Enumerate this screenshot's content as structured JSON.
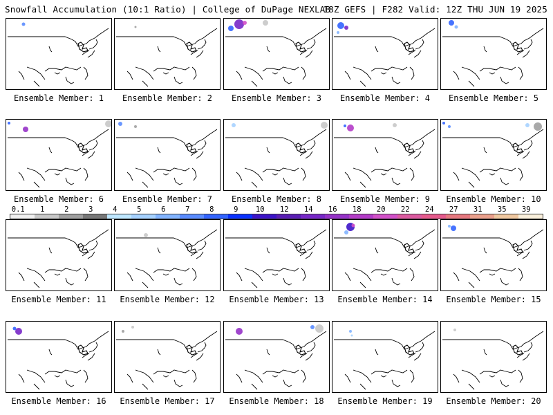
{
  "header": {
    "left": "Snowfall Accumulation (10:1 Ratio) | College of DuPage NEXLAB",
    "right": "18Z GEFS | F282 Valid: 12Z THU JUN 19 2025"
  },
  "colorbar": {
    "labels": [
      "0.1",
      "1",
      "2",
      "3",
      "4",
      "5",
      "6",
      "7",
      "8",
      "9",
      "10",
      "12",
      "14",
      "16",
      "18",
      "20",
      "22",
      "24",
      "27",
      "31",
      "35",
      "39"
    ],
    "colors": [
      "#f0f0f0",
      "#c8c8c8",
      "#a0a0a0",
      "#787878",
      "#bfe8ff",
      "#a6d2ff",
      "#82b4ff",
      "#5a8cff",
      "#3264ff",
      "#0a32ff",
      "#3c14c8",
      "#5a1eb4",
      "#7828c8",
      "#9632c8",
      "#b43cc8",
      "#d250c8",
      "#dc5aa0",
      "#e65a8c",
      "#e6787f",
      "#eba08c",
      "#f0c8a0",
      "#faf0dc"
    ]
  },
  "map_legend_icon": "us-outline-map",
  "panels": [
    {
      "caption": "Ensemble Member: 1",
      "snow": [
        {
          "cx": 25,
          "cy": 8,
          "r": 2.5,
          "color": "#5a8cff"
        }
      ]
    },
    {
      "caption": "Ensemble Member: 2",
      "snow": [
        {
          "cx": 30,
          "cy": 12,
          "r": 1.5,
          "color": "#a0a0a0"
        }
      ]
    },
    {
      "caption": "Ensemble Member: 3",
      "snow": [
        {
          "cx": 22,
          "cy": 8,
          "r": 7,
          "color": "#7828c8"
        },
        {
          "cx": 10,
          "cy": 14,
          "r": 4,
          "color": "#3264ff"
        },
        {
          "cx": 30,
          "cy": 6,
          "r": 3,
          "color": "#d250c8"
        },
        {
          "cx": 60,
          "cy": 6,
          "r": 4,
          "color": "#c8c8c8"
        }
      ]
    },
    {
      "caption": "Ensemble Member: 4",
      "snow": [
        {
          "cx": 12,
          "cy": 10,
          "r": 5,
          "color": "#3264ff"
        },
        {
          "cx": 20,
          "cy": 13,
          "r": 3,
          "color": "#7828c8"
        },
        {
          "cx": 8,
          "cy": 20,
          "r": 2,
          "color": "#82b4ff"
        }
      ]
    },
    {
      "caption": "Ensemble Member: 5",
      "snow": [
        {
          "cx": 15,
          "cy": 6,
          "r": 4,
          "color": "#3264ff"
        },
        {
          "cx": 22,
          "cy": 12,
          "r": 2.5,
          "color": "#82b4ff"
        }
      ]
    },
    {
      "caption": "Ensemble Member: 6",
      "snow": [
        {
          "cx": 28,
          "cy": 14,
          "r": 4,
          "color": "#9632c8"
        },
        {
          "cx": 4,
          "cy": 5,
          "r": 2,
          "color": "#3264ff"
        },
        {
          "cx": 148,
          "cy": 6,
          "r": 5,
          "color": "#c8c8c8"
        }
      ]
    },
    {
      "caption": "Ensemble Member: 7",
      "snow": [
        {
          "cx": 8,
          "cy": 6,
          "r": 3,
          "color": "#5a8cff"
        },
        {
          "cx": 30,
          "cy": 10,
          "r": 2,
          "color": "#a0a0a0"
        }
      ]
    },
    {
      "caption": "Ensemble Member: 8",
      "snow": [
        {
          "cx": 14,
          "cy": 8,
          "r": 3,
          "color": "#a6d2ff"
        },
        {
          "cx": 145,
          "cy": 8,
          "r": 5,
          "color": "#c8c8c8"
        }
      ]
    },
    {
      "caption": "Ensemble Member: 9",
      "snow": [
        {
          "cx": 26,
          "cy": 12,
          "r": 5,
          "color": "#b43cc8"
        },
        {
          "cx": 18,
          "cy": 9,
          "r": 2,
          "color": "#3264ff"
        },
        {
          "cx": 90,
          "cy": 8,
          "r": 3,
          "color": "#c8c8c8"
        }
      ]
    },
    {
      "caption": "Ensemble Member: 10",
      "snow": [
        {
          "cx": 4,
          "cy": 5,
          "r": 2,
          "color": "#3264ff"
        },
        {
          "cx": 12,
          "cy": 10,
          "r": 2,
          "color": "#5a8cff"
        },
        {
          "cx": 140,
          "cy": 10,
          "r": 6,
          "color": "#a0a0a0"
        },
        {
          "cx": 125,
          "cy": 8,
          "r": 3,
          "color": "#a6d2ff"
        }
      ]
    },
    {
      "caption": "Ensemble Member: 11",
      "snow": []
    },
    {
      "caption": "Ensemble Member: 12",
      "snow": [
        {
          "cx": 45,
          "cy": 22,
          "r": 3,
          "color": "#c8c8c8"
        }
      ]
    },
    {
      "caption": "Ensemble Member: 13",
      "snow": []
    },
    {
      "caption": "Ensemble Member: 14",
      "snow": [
        {
          "cx": 26,
          "cy": 10,
          "r": 6,
          "color": "#3c14c8"
        },
        {
          "cx": 20,
          "cy": 18,
          "r": 3,
          "color": "#82b4ff"
        },
        {
          "cx": 30,
          "cy": 8,
          "r": 2.5,
          "color": "#d250c8"
        }
      ]
    },
    {
      "caption": "Ensemble Member: 15",
      "snow": [
        {
          "cx": 18,
          "cy": 12,
          "r": 4,
          "color": "#3264ff"
        },
        {
          "cx": 12,
          "cy": 9,
          "r": 2,
          "color": "#82b4ff"
        }
      ]
    },
    {
      "caption": "Ensemble Member: 16",
      "snow": [
        {
          "cx": 18,
          "cy": 14,
          "r": 5,
          "color": "#7828c8"
        },
        {
          "cx": 12,
          "cy": 10,
          "r": 2.5,
          "color": "#3264ff"
        }
      ]
    },
    {
      "caption": "Ensemble Member: 17",
      "snow": [
        {
          "cx": 12,
          "cy": 14,
          "r": 2,
          "color": "#a0a0a0"
        },
        {
          "cx": 26,
          "cy": 8,
          "r": 2,
          "color": "#c8c8c8"
        }
      ]
    },
    {
      "caption": "Ensemble Member: 18",
      "snow": [
        {
          "cx": 22,
          "cy": 14,
          "r": 5,
          "color": "#9632c8"
        },
        {
          "cx": 138,
          "cy": 10,
          "r": 6,
          "color": "#c8c8c8"
        },
        {
          "cx": 128,
          "cy": 8,
          "r": 3,
          "color": "#5a8cff"
        }
      ]
    },
    {
      "caption": "Ensemble Member: 19",
      "snow": [
        {
          "cx": 26,
          "cy": 14,
          "r": 2,
          "color": "#82b4ff"
        },
        {
          "cx": 28,
          "cy": 20,
          "r": 1.5,
          "color": "#a6d2ff"
        }
      ]
    },
    {
      "caption": "Ensemble Member: 20",
      "snow": [
        {
          "cx": 20,
          "cy": 12,
          "r": 2,
          "color": "#c8c8c8"
        }
      ]
    }
  ]
}
